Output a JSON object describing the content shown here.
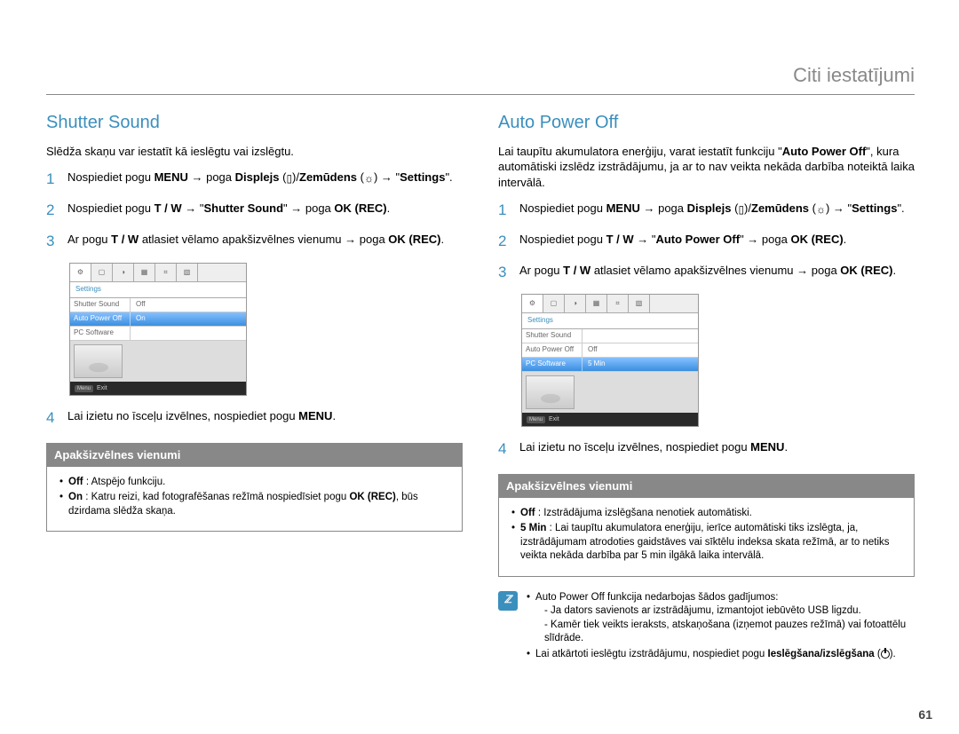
{
  "page": {
    "header": "Citi iestatījumi",
    "number": "61"
  },
  "left": {
    "title": "Shutter Sound",
    "intro": "Slēdža skaņu var iestatīt kā ieslēgtu vai izslēgtu.",
    "step1_a": "Nospiediet pogu ",
    "step1_menu": "MENU",
    "step1_b": " → poga ",
    "step1_disp": "Displejs",
    "step1_c": " (",
    "step1_d": ")/",
    "step1_zem": "Zemūdens",
    "step1_e": " (",
    "step1_f": ") → \"",
    "step1_set": "Settings",
    "step1_g": "\".",
    "step2_a": "Nospiediet pogu ",
    "step2_tw": "T / W",
    "step2_b": " → \"",
    "step2_item": "Shutter Sound",
    "step2_c": "\" → poga ",
    "step2_ok": "OK (REC)",
    "step2_d": ".",
    "step3_a": "Ar pogu ",
    "step3_tw": "T / W",
    "step3_b": " atlasiet vēlamo apakšizvēlnes vienumu → poga ",
    "step3_ok": "OK (REC)",
    "step3_c": ".",
    "step4_a": "Lai izietu no īsceļu izvēlnes, nospiediet pogu ",
    "step4_menu": "MENU",
    "step4_b": ".",
    "lcd": {
      "settings": "Settings",
      "r1l": "Shutter Sound",
      "r1r": "Off",
      "r2l": "Auto Power Off",
      "r2r": "On",
      "r3l": "PC Software",
      "r3r": "",
      "exit": "Exit"
    },
    "submenu": {
      "head": "Apakšizvēlnes vienumi",
      "off_label": "Off",
      "off_text": " : Atspējo funkciju.",
      "on_label": "On",
      "on_text1": " : Katru reizi, kad fotografēšanas režīmā nospiedīsiet pogu ",
      "on_ok": "OK (REC)",
      "on_text2": ", būs dzirdama slēdža skaņa."
    }
  },
  "right": {
    "title": "Auto Power Off",
    "intro_a": "Lai taupītu akumulatora enerģiju, varat iestatīt funkciju \"",
    "intro_b": "Auto Power Off",
    "intro_c": "\", kura automātiski izslēdz izstrādājumu, ja ar to nav veikta nekāda darbība noteiktā laika intervālā.",
    "step1_a": "Nospiediet pogu ",
    "step1_menu": "MENU",
    "step1_b": " → poga ",
    "step1_disp": "Displejs",
    "step1_c": " (",
    "step1_d": ")/",
    "step1_zem": "Zemūdens",
    "step1_e": " (",
    "step1_f": ") → \"",
    "step1_set": "Settings",
    "step1_g": "\".",
    "step2_a": "Nospiediet pogu ",
    "step2_tw": "T / W",
    "step2_b": " → \"",
    "step2_item": "Auto Power Off",
    "step2_c": "\" → poga ",
    "step2_ok": "OK (REC)",
    "step2_d": ".",
    "step3_a": "Ar pogu ",
    "step3_tw": "T / W",
    "step3_b": " atlasiet vēlamo apakšizvēlnes vienumu → poga ",
    "step3_ok": "OK (REC)",
    "step3_c": ".",
    "step4_a": "Lai izietu no īsceļu izvēlnes, nospiediet pogu ",
    "step4_menu": "MENU",
    "step4_b": ".",
    "lcd": {
      "settings": "Settings",
      "r1l": "Shutter Sound",
      "r1r": "",
      "r2l": "Auto Power Off",
      "r2r": "Off",
      "r3l": "PC Software",
      "r3r": "5 Min",
      "exit": "Exit"
    },
    "submenu": {
      "head": "Apakšizvēlnes vienumi",
      "off_label": "Off",
      "off_text": " : Izstrādājuma izslēgšana nenotiek automātiski.",
      "min_label": "5 Min",
      "min_text": " : Lai taupītu akumulatora enerģiju, ierīce automātiski tiks izslēgta, ja, izstrādājumam atrodoties gaidstāves vai sīktēlu indeksa skata režīmā, ar to netiks veikta nekāda darbība par 5 min ilgākā laika intervālā."
    },
    "note": {
      "b1": "Auto Power Off funkcija nedarbojas šādos gadījumos:",
      "sub1": "- Ja dators savienots ar izstrādājumu, izmantojot iebūvēto USB ligzdu.",
      "sub2": "- Kamēr tiek veikts ieraksts, atskaņošana (izņemot pauzes režīmā) vai fotoattēlu slīdrāde.",
      "b2_a": "Lai atkārtoti ieslēgtu izstrādājumu, nospiediet pogu ",
      "b2_b": "Ieslēgšana/izslēgšana",
      "b2_c": " ("
    }
  }
}
